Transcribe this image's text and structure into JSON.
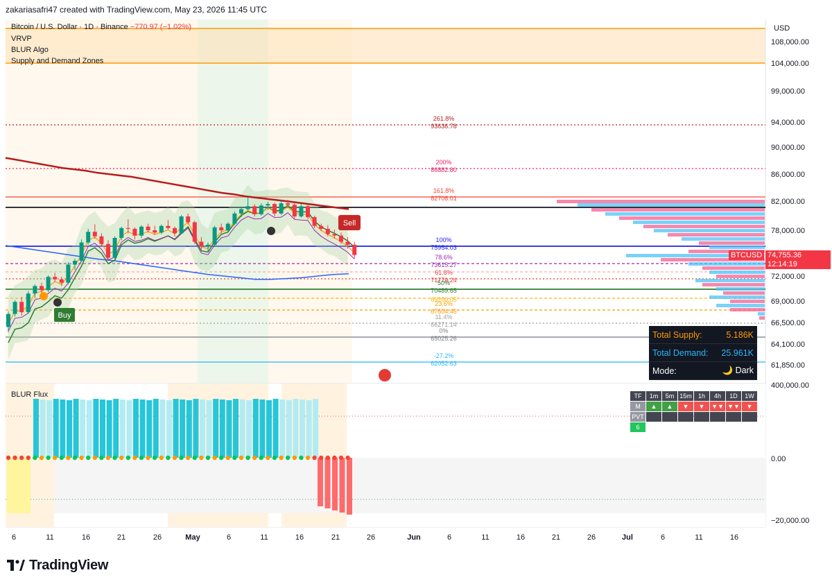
{
  "header": {
    "created_by": "zakariasafri47 created with TradingView.com, May 23, 2026 11:45 UTC"
  },
  "legend": {
    "symbol": "Bitcoin / U.S. Dollar · 1D · Binance",
    "change": "−770.97 (−1.02%)",
    "indicators": [
      "VRVP",
      "BLUR Algo",
      "Supply and Demand Zones"
    ]
  },
  "price_axis": {
    "currency": "USD",
    "ticks": [
      "108,000.00",
      "104,000.00",
      "99,000.00",
      "94,000.00",
      "90,000.00",
      "86,000.00",
      "82,000.00",
      "78,000.00",
      "72,000.00",
      "69,000.00",
      "66,500.00",
      "64,100.00",
      "61,850.00"
    ],
    "last_symbol": "BTCUSD",
    "last_price": "74,755.36",
    "countdown": "12:14:19"
  },
  "fib_levels": [
    {
      "pct": "261.8%",
      "price": "93636.78",
      "color": "#b71c1c"
    },
    {
      "pct": "200%",
      "price": "86882.80",
      "color": "#e91e63"
    },
    {
      "pct": "161.8%",
      "price": "82708.01",
      "color": "#f44336"
    },
    {
      "pct": "100%",
      "price": "75954.03",
      "color": "#1e22e6"
    },
    {
      "pct": "78.6%",
      "price": "73615.27",
      "color": "#9c27b0"
    },
    {
      "pct": "61.8%",
      "price": "71779.24",
      "color": "#e53935"
    },
    {
      "pct": "50%",
      "price": "70489.65",
      "color": "#2e7d32"
    },
    {
      "pct": "",
      "price": "69200.05",
      "color": "#ffb300"
    },
    {
      "pct": "23.6%",
      "price": "67604.45",
      "color": "#ff9800"
    },
    {
      "pct": "11.4%",
      "price": "66271.14",
      "color": "#9e9e9e"
    },
    {
      "pct": "0%",
      "price": "65025.26",
      "color": "#787b86"
    },
    {
      "pct": "-27.2%",
      "price": "62052.63",
      "color": "#29b6f6"
    }
  ],
  "signals": {
    "buy": "Buy",
    "sell": "Sell"
  },
  "info_box": {
    "supply_label": "Total Supply:",
    "supply_value": "5.186K",
    "demand_label": "Total Demand:",
    "demand_value": "25.961K",
    "mode_label": "Mode:",
    "mode_value": "🌙 Dark"
  },
  "flux": {
    "title": "BLUR Flux",
    "ticks": [
      "400,000.00",
      "0.00",
      "−20,000.00"
    ],
    "table": {
      "headers": [
        "TF",
        "1m",
        "5m",
        "15m",
        "1h",
        "4h",
        "1D",
        "1W"
      ],
      "row_m": [
        "M",
        "▲",
        "▲",
        "▼",
        "▼",
        "▼▼",
        "▼▼",
        "▼"
      ],
      "row_pvt": "PVT",
      "row_count": "6"
    }
  },
  "time_axis": [
    "6",
    "11",
    "16",
    "21",
    "26",
    "May",
    "6",
    "11",
    "16",
    "21",
    "26",
    "Jun",
    "6",
    "11",
    "16",
    "21",
    "26",
    "Jul",
    "6",
    "11",
    "16"
  ],
  "brand": "TradingView",
  "colors": {
    "up": "#089981",
    "down": "#f23645",
    "accent": "#2962ff"
  },
  "chart_data": {
    "type": "candlestick",
    "title": "Bitcoin / U.S. Dollar · 1D · Binance",
    "ylim": [
      61000,
      110000
    ],
    "candles_ohlc": [
      [
        66000,
        67800,
        65400,
        67500
      ],
      [
        67500,
        69100,
        67200,
        68900
      ],
      [
        68900,
        69500,
        67300,
        67700
      ],
      [
        67700,
        70200,
        67500,
        69900
      ],
      [
        69900,
        71000,
        69400,
        70800
      ],
      [
        70800,
        71200,
        69800,
        70300
      ],
      [
        70300,
        72100,
        70100,
        71900
      ],
      [
        71900,
        72400,
        71300,
        71600
      ],
      [
        71600,
        71900,
        70800,
        71200
      ],
      [
        71200,
        73800,
        71000,
        73500
      ],
      [
        73500,
        74300,
        72800,
        74000
      ],
      [
        74000,
        76800,
        73800,
        76400
      ],
      [
        76400,
        78200,
        76100,
        77800
      ],
      [
        77800,
        78800,
        76900,
        77200
      ],
      [
        77200,
        77600,
        75900,
        76200
      ],
      [
        76200,
        76700,
        74000,
        74400
      ],
      [
        74400,
        77200,
        74200,
        77000
      ],
      [
        77000,
        78500,
        76700,
        78300
      ],
      [
        78300,
        79500,
        77600,
        78200
      ],
      [
        78200,
        78400,
        76800,
        77300
      ],
      [
        77300,
        78700,
        77000,
        78500
      ],
      [
        78500,
        78900,
        77700,
        78000
      ],
      [
        78000,
        78600,
        77400,
        77700
      ],
      [
        77700,
        78800,
        77500,
        78600
      ],
      [
        78600,
        79400,
        78100,
        78300
      ],
      [
        78300,
        78500,
        77200,
        77600
      ],
      [
        77600,
        80100,
        77500,
        79900
      ],
      [
        79900,
        80300,
        78800,
        79100
      ],
      [
        79100,
        79300,
        76200,
        76500
      ],
      [
        76500,
        77100,
        75400,
        75900
      ],
      [
        75900,
        76400,
        75200,
        76100
      ],
      [
        76100,
        78600,
        75900,
        78400
      ],
      [
        78400,
        78900,
        77600,
        78000
      ],
      [
        78000,
        79100,
        77800,
        78900
      ],
      [
        78900,
        80600,
        78700,
        80300
      ],
      [
        80300,
        81200,
        79800,
        80900
      ],
      [
        80900,
        82600,
        80700,
        81300
      ],
      [
        81300,
        81600,
        79900,
        80200
      ],
      [
        80200,
        81700,
        80000,
        81400
      ],
      [
        81400,
        81900,
        80800,
        81600
      ],
      [
        81600,
        81800,
        79900,
        80300
      ],
      [
        80300,
        82100,
        80100,
        81700
      ],
      [
        81700,
        82200,
        81200,
        81500
      ],
      [
        81500,
        81700,
        79600,
        79900
      ],
      [
        79900,
        81600,
        79700,
        81300
      ],
      [
        81300,
        81500,
        79500,
        79800
      ],
      [
        79800,
        80000,
        78300,
        78600
      ],
      [
        78600,
        78900,
        77900,
        78200
      ],
      [
        78200,
        78700,
        77200,
        77500
      ],
      [
        77500,
        78100,
        76900,
        77300
      ],
      [
        77300,
        77700,
        76200,
        76500
      ],
      [
        76500,
        77100,
        75600,
        76100
      ],
      [
        76100,
        76500,
        74300,
        74755
      ]
    ],
    "series": [
      {
        "name": "",
        "values": [
          88400,
          88100,
          87800,
          87500,
          87200,
          86900,
          86700,
          86500,
          86200,
          86000,
          85800,
          85600,
          85300,
          85000,
          84700,
          84400,
          84100,
          83800,
          83500,
          83200,
          83000,
          82700,
          82500,
          82300,
          82100,
          81900,
          81700,
          81500,
          81300,
          81100,
          80900
        ]
      },
      {
        "name": "",
        "values": [
          76000,
          75700,
          75400,
          75100,
          74800,
          74500,
          74200,
          74000,
          73700,
          73400,
          73100,
          72800,
          72500,
          72200,
          72000,
          71800,
          71600,
          71600,
          71700,
          71800,
          72000,
          72200,
          72300
        ]
      }
    ]
  }
}
